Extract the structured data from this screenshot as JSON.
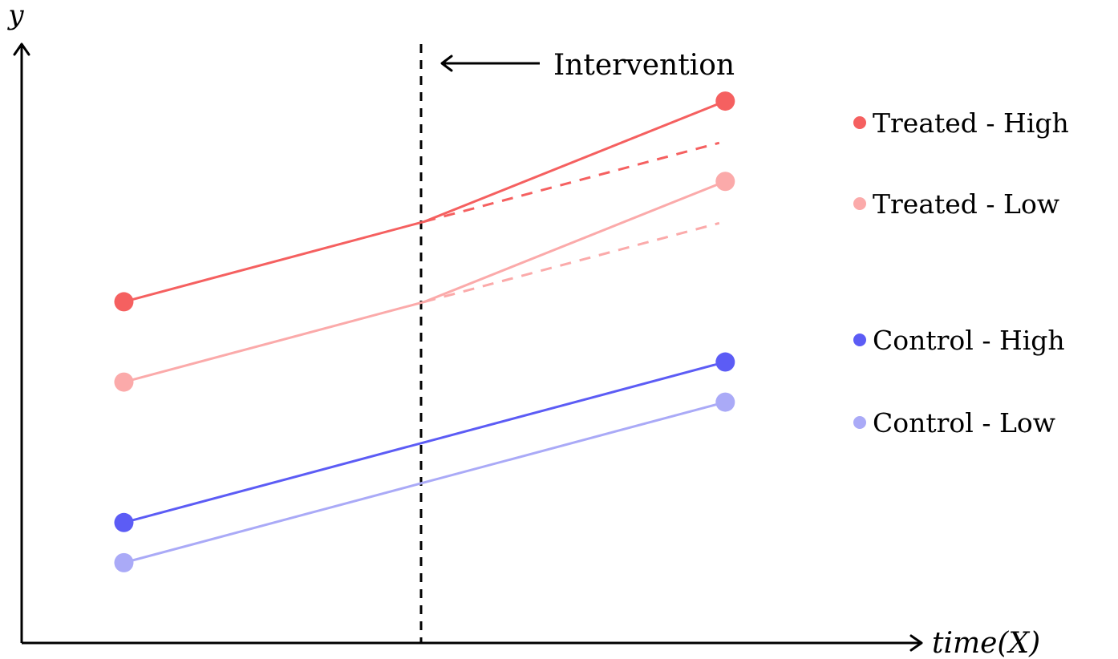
{
  "chart_data": {
    "type": "line",
    "xlabel": "time(X)",
    "ylabel": "y",
    "x": [
      0,
      1,
      2
    ],
    "xlim": [
      -0.34,
      2.65
    ],
    "ylim": [
      -0.25,
      7.2
    ],
    "intervention": {
      "x": 1,
      "label": "Intervention"
    },
    "legend": {
      "position": "right"
    },
    "series": [
      {
        "name": "Treated - High",
        "color": "#f56060",
        "values": [
          4,
          5,
          6.5
        ],
        "counterfactual": [
          5,
          6
        ]
      },
      {
        "name": "Treated - Low",
        "color": "#fbaaaa",
        "values": [
          3,
          4,
          5.5
        ],
        "counterfactual": [
          4,
          5
        ]
      },
      {
        "name": "Control - High",
        "color": "#5c5cf5",
        "values": [
          1.25,
          2.25,
          3.25
        ],
        "counterfactual": null
      },
      {
        "name": "Control - Low",
        "color": "#aaaaf7",
        "values": [
          0.75,
          1.75,
          2.75
        ],
        "counterfactual": null
      }
    ]
  }
}
